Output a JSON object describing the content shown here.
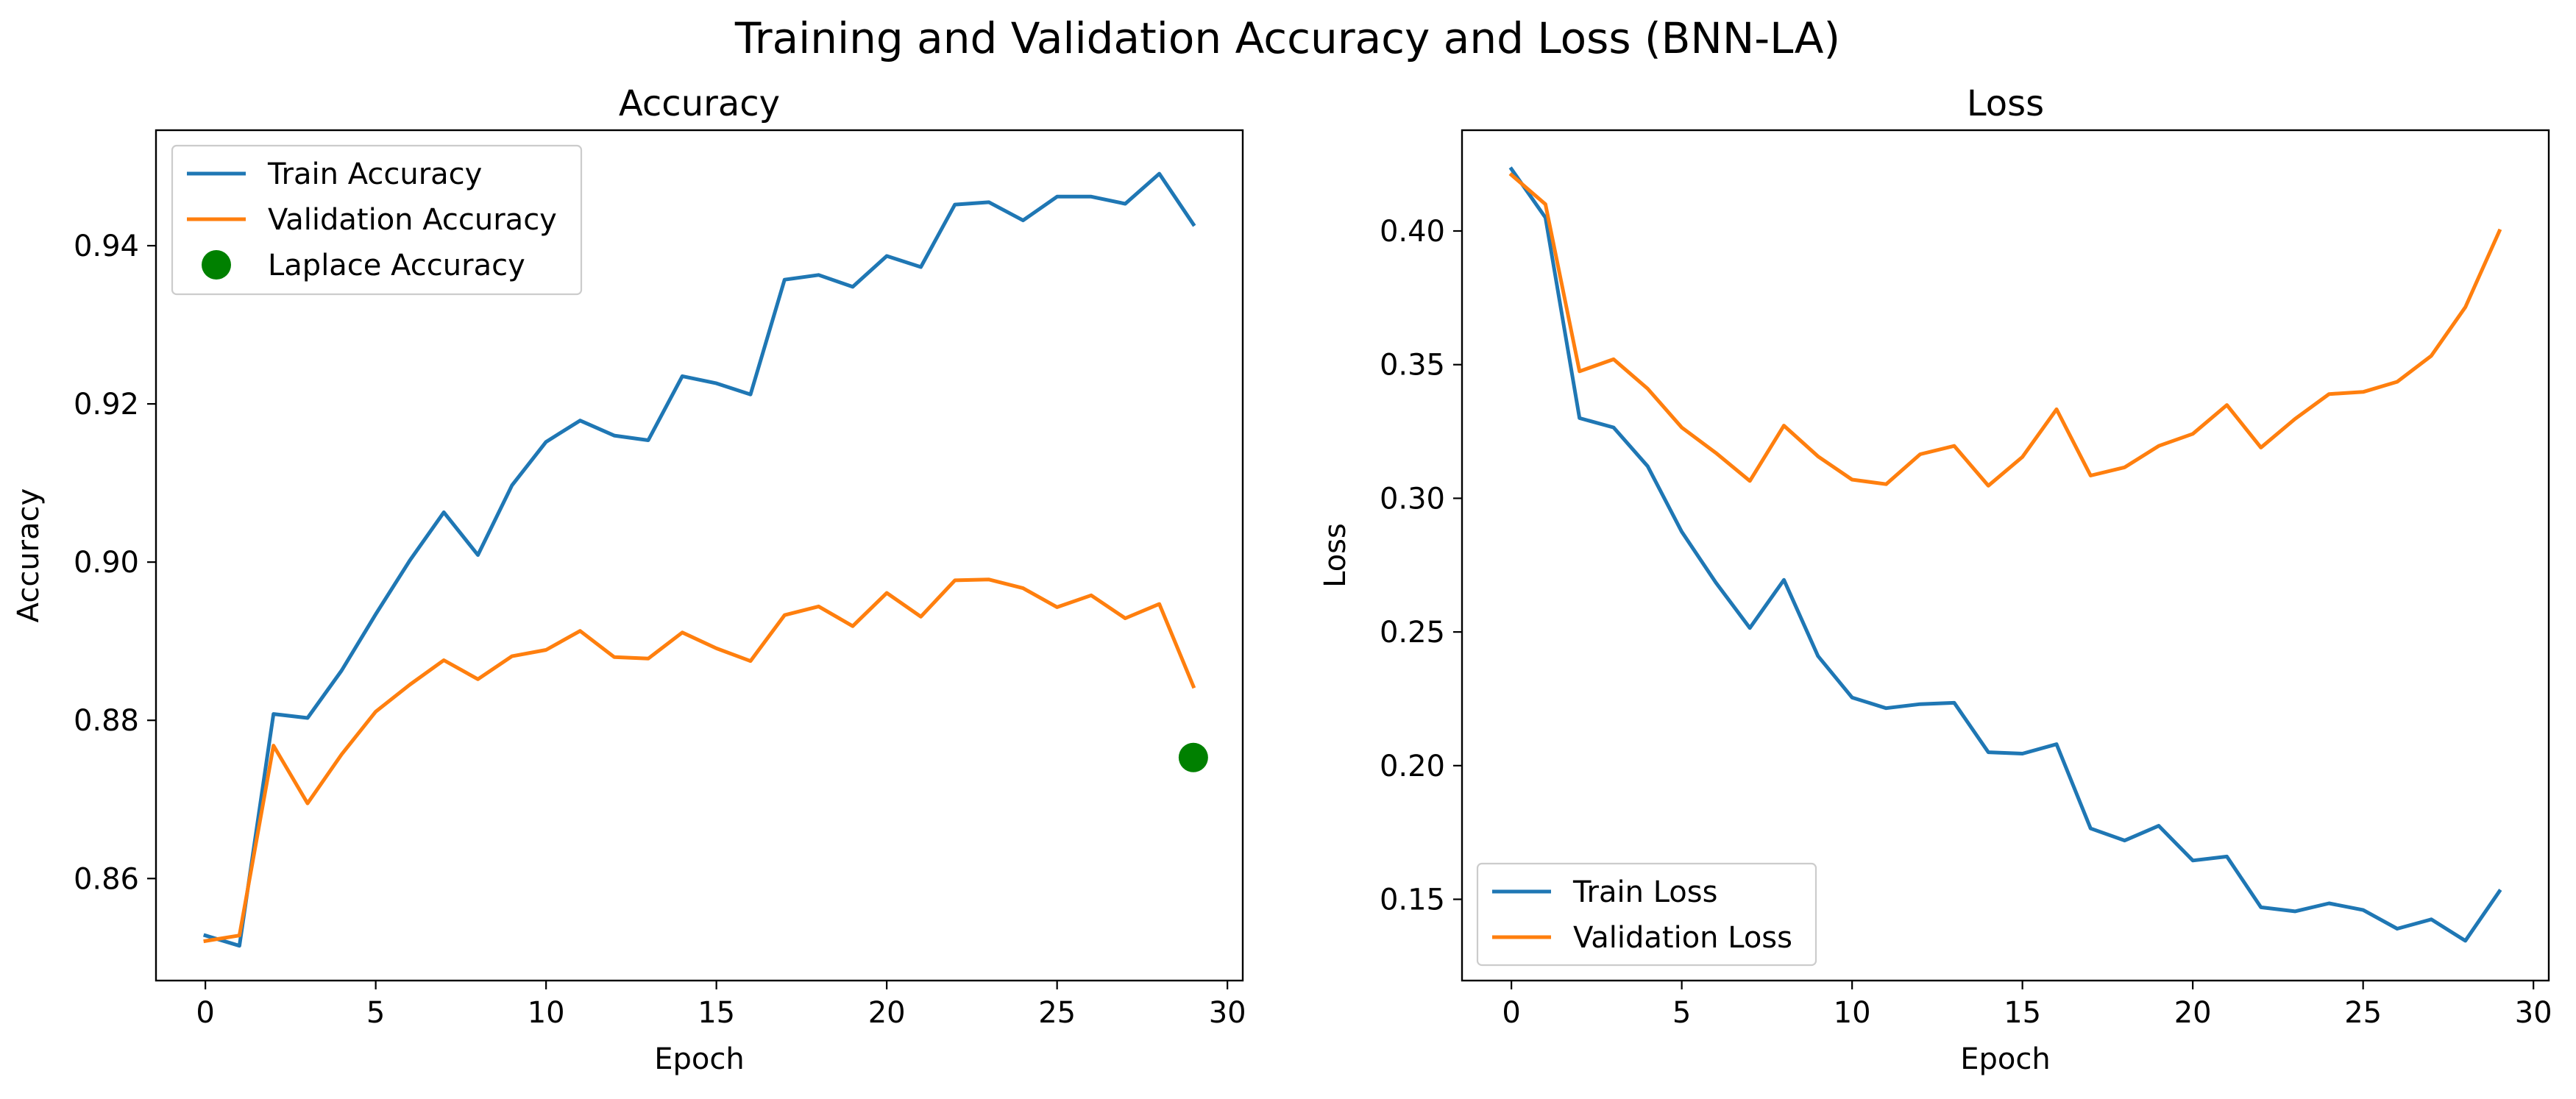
{
  "figure_title": "Training and Validation Accuracy and Loss (BNN-LA)",
  "colors": {
    "train": "#1f77b4",
    "validation": "#ff7f0e",
    "laplace": "#008000"
  },
  "chart_data": [
    {
      "type": "line",
      "title": "Accuracy",
      "xlabel": "Epoch",
      "ylabel": "Accuracy",
      "xlim": [
        -1.45,
        30.45
      ],
      "ylim": [
        0.8471,
        0.9546
      ],
      "xticks": [
        0,
        5,
        10,
        15,
        20,
        25,
        30
      ],
      "xtick_labels": [
        "0",
        "5",
        "10",
        "15",
        "20",
        "25",
        "30"
      ],
      "yticks": [
        0.86,
        0.88,
        0.9,
        0.92,
        0.94
      ],
      "ytick_labels": [
        "0.86",
        "0.88",
        "0.90",
        "0.92",
        "0.94"
      ],
      "legend_position": "upper-left",
      "x": [
        0,
        1,
        2,
        3,
        4,
        5,
        6,
        7,
        8,
        9,
        10,
        11,
        12,
        13,
        14,
        15,
        16,
        17,
        18,
        19,
        20,
        21,
        22,
        23,
        24,
        25,
        26,
        27,
        28,
        29
      ],
      "series": [
        {
          "name": "Train Accuracy",
          "kind": "line",
          "color": "#1f77b4",
          "values": [
            0.8528,
            0.8515,
            0.8808,
            0.8803,
            0.8863,
            0.8934,
            0.9002,
            0.9063,
            0.9009,
            0.9097,
            0.9152,
            0.9179,
            0.916,
            0.9154,
            0.9235,
            0.9226,
            0.9212,
            0.9357,
            0.9363,
            0.9348,
            0.9387,
            0.9373,
            0.9452,
            0.9455,
            0.9432,
            0.9462,
            0.9462,
            0.9453,
            0.9491,
            0.9427
          ]
        },
        {
          "name": "Validation Accuracy",
          "kind": "line",
          "color": "#ff7f0e",
          "values": [
            0.8521,
            0.8528,
            0.8768,
            0.8695,
            0.8757,
            0.8811,
            0.8845,
            0.8876,
            0.8852,
            0.8881,
            0.8889,
            0.8913,
            0.888,
            0.8878,
            0.8911,
            0.8891,
            0.8875,
            0.8933,
            0.8944,
            0.8919,
            0.8961,
            0.8931,
            0.8977,
            0.8978,
            0.8967,
            0.8943,
            0.8958,
            0.8929,
            0.8947,
            0.8843
          ]
        },
        {
          "name": "Laplace Accuracy",
          "kind": "point",
          "color": "#008000",
          "points": [
            {
              "x": 29,
              "y": 0.8753
            }
          ]
        }
      ]
    },
    {
      "type": "line",
      "title": "Loss",
      "xlabel": "Epoch",
      "ylabel": "Loss",
      "xlim": [
        -1.45,
        30.45
      ],
      "ylim": [
        0.1196,
        0.4377
      ],
      "xticks": [
        0,
        5,
        10,
        15,
        20,
        25,
        30
      ],
      "xtick_labels": [
        "0",
        "5",
        "10",
        "15",
        "20",
        "25",
        "30"
      ],
      "yticks": [
        0.15,
        0.2,
        0.25,
        0.3,
        0.35,
        0.4
      ],
      "ytick_labels": [
        "0.15",
        "0.20",
        "0.25",
        "0.30",
        "0.35",
        "0.40"
      ],
      "legend_position": "lower-left",
      "x": [
        0,
        1,
        2,
        3,
        4,
        5,
        6,
        7,
        8,
        9,
        10,
        11,
        12,
        13,
        14,
        15,
        16,
        17,
        18,
        19,
        20,
        21,
        22,
        23,
        24,
        25,
        26,
        27,
        28,
        29
      ],
      "series": [
        {
          "name": "Train Loss",
          "kind": "line",
          "color": "#1f77b4",
          "values": [
            0.4232,
            0.405,
            0.33,
            0.3265,
            0.312,
            0.2875,
            0.2685,
            0.2515,
            0.2695,
            0.241,
            0.2255,
            0.2215,
            0.223,
            0.2235,
            0.205,
            0.2045,
            0.208,
            0.1765,
            0.172,
            0.1775,
            0.1645,
            0.166,
            0.147,
            0.1455,
            0.1485,
            0.146,
            0.139,
            0.1425,
            0.1345,
            0.153
          ]
        },
        {
          "name": "Validation Loss",
          "kind": "line",
          "color": "#ff7f0e",
          "values": [
            0.421,
            0.41,
            0.3475,
            0.352,
            0.341,
            0.3265,
            0.317,
            0.3065,
            0.3272,
            0.3157,
            0.307,
            0.3053,
            0.3165,
            0.3196,
            0.3047,
            0.3155,
            0.3333,
            0.3085,
            0.3116,
            0.3196,
            0.3241,
            0.3349,
            0.319,
            0.3297,
            0.339,
            0.3398,
            0.3436,
            0.3533,
            0.3715,
            0.4
          ]
        }
      ]
    }
  ]
}
